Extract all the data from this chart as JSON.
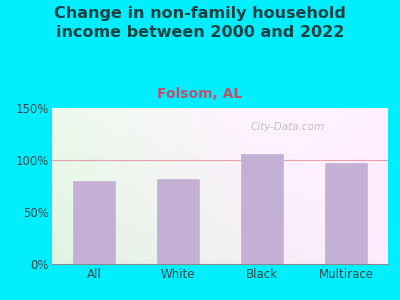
{
  "title": "Change in non-family household\nincome between 2000 and 2022",
  "subtitle": "Folsom, AL",
  "categories": [
    "All",
    "White",
    "Black",
    "Multirace"
  ],
  "values": [
    80,
    82,
    106,
    97
  ],
  "bar_color": "#C4B0D5",
  "ylim": [
    0,
    150
  ],
  "yticks": [
    0,
    50,
    100,
    150
  ],
  "ytick_labels": [
    "0%",
    "50%",
    "100%",
    "150%"
  ],
  "title_fontsize": 11.5,
  "subtitle_fontsize": 10,
  "subtitle_color": "#c0506a",
  "title_color": "#1a4040",
  "background_outer": "#00eeff",
  "watermark": "City-Data.com",
  "grid_color": "#e8a0a8",
  "tick_label_color": "#444444",
  "axis_tick_fontsize": 8.5
}
